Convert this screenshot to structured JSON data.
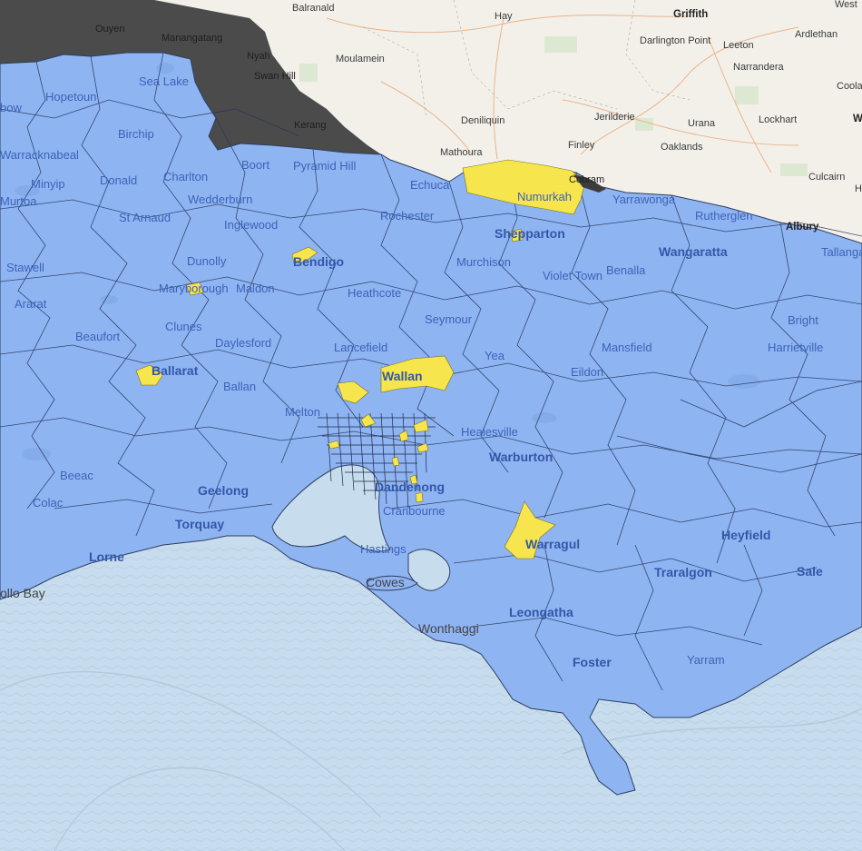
{
  "map": {
    "colors": {
      "water": "#c7dced",
      "land_nsw": "#f3f0ea",
      "region_blue": "#8fb4f2",
      "region_yellow": "#f6e54c",
      "region_dark": "#4b4b4b",
      "boundary": "#1c2a44"
    },
    "labels": [
      {
        "id": "balranald",
        "text": "Balranald",
        "style": "nsw"
      },
      {
        "id": "hay",
        "text": "Hay",
        "style": "nsw"
      },
      {
        "id": "griffith",
        "text": "Griffith",
        "style": "nsw bold"
      },
      {
        "id": "west",
        "text": "West",
        "style": "nsw"
      },
      {
        "id": "ouyen",
        "text": "Ouyen",
        "style": "dark"
      },
      {
        "id": "manangatang",
        "text": "Manangatang",
        "style": "dark"
      },
      {
        "id": "nyah",
        "text": "Nyah",
        "style": "dark"
      },
      {
        "id": "swanhill",
        "text": "Swan Hill",
        "style": "dark"
      },
      {
        "id": "kerang",
        "text": "Kerang",
        "style": "dark"
      },
      {
        "id": "moulamein",
        "text": "Moulamein",
        "style": "nsw"
      },
      {
        "id": "darlington",
        "text": "Darlington Point",
        "style": "nsw"
      },
      {
        "id": "leeton",
        "text": "Leeton",
        "style": "nsw"
      },
      {
        "id": "ardlethan",
        "text": "Ardlethan",
        "style": "nsw"
      },
      {
        "id": "narrandera",
        "text": "Narrandera",
        "style": "nsw"
      },
      {
        "id": "coola",
        "text": "Coola",
        "style": "nsw"
      },
      {
        "id": "deniliquin",
        "text": "Deniliquin",
        "style": "nsw"
      },
      {
        "id": "jerilderie",
        "text": "Jerilderie",
        "style": "nsw"
      },
      {
        "id": "urana",
        "text": "Urana",
        "style": "nsw"
      },
      {
        "id": "lockhart",
        "text": "Lockhart",
        "style": "nsw"
      },
      {
        "id": "w",
        "text": "W",
        "style": "nsw bold"
      },
      {
        "id": "mathoura",
        "text": "Mathoura",
        "style": "nsw"
      },
      {
        "id": "finley",
        "text": "Finley",
        "style": "nsw"
      },
      {
        "id": "oaklands",
        "text": "Oaklands",
        "style": "nsw"
      },
      {
        "id": "culcairn",
        "text": "Culcairn",
        "style": "nsw"
      },
      {
        "id": "he",
        "text": "He",
        "style": "nsw"
      },
      {
        "id": "albury",
        "text": "Albury",
        "style": "nsw bold"
      },
      {
        "id": "cobram",
        "text": "Cobram",
        "style": "dark"
      },
      {
        "id": "hopetoun",
        "text": "Hopetoun",
        "style": "vic"
      },
      {
        "id": "sealake",
        "text": "Sea Lake",
        "style": "vic"
      },
      {
        "id": "rainbow",
        "text": "bow",
        "style": "vic"
      },
      {
        "id": "birchip",
        "text": "Birchip",
        "style": "vic"
      },
      {
        "id": "warracknabeal",
        "text": "Warracknabeal",
        "style": "vic"
      },
      {
        "id": "charlton",
        "text": "Charlton",
        "style": "vic"
      },
      {
        "id": "boort",
        "text": "Boort",
        "style": "vic"
      },
      {
        "id": "pyramidhill",
        "text": "Pyramid Hill",
        "style": "vic"
      },
      {
        "id": "minyip",
        "text": "Minyip",
        "style": "vic"
      },
      {
        "id": "donald",
        "text": "Donald",
        "style": "vic"
      },
      {
        "id": "wedderburn",
        "text": "Wedderburn",
        "style": "vic"
      },
      {
        "id": "echuca",
        "text": "Echuca",
        "style": "vic"
      },
      {
        "id": "numurkah",
        "text": "Numurkah",
        "style": "vic"
      },
      {
        "id": "yarrawonga",
        "text": "Yarrawonga",
        "style": "vic"
      },
      {
        "id": "murtoa",
        "text": "Murtoa",
        "style": "vic"
      },
      {
        "id": "starnaud",
        "text": "St Arnaud",
        "style": "vic"
      },
      {
        "id": "inglewood",
        "text": "Inglewood",
        "style": "vic"
      },
      {
        "id": "rochester",
        "text": "Rochester",
        "style": "vic"
      },
      {
        "id": "rutherglen",
        "text": "Rutherglen",
        "style": "vic"
      },
      {
        "id": "shepparton",
        "text": "Shepparton",
        "style": "vic big"
      },
      {
        "id": "wangaratta",
        "text": "Wangaratta",
        "style": "vic big"
      },
      {
        "id": "tallangatta",
        "text": "Tallanga",
        "style": "vic"
      },
      {
        "id": "stawell",
        "text": "Stawell",
        "style": "vic"
      },
      {
        "id": "dunolly",
        "text": "Dunolly",
        "style": "vic"
      },
      {
        "id": "bendigo",
        "text": "Bendigo",
        "style": "vic big"
      },
      {
        "id": "murchison",
        "text": "Murchison",
        "style": "vic"
      },
      {
        "id": "benalla",
        "text": "Benalla",
        "style": "vic"
      },
      {
        "id": "violettown",
        "text": "Violet Town",
        "style": "vic"
      },
      {
        "id": "ararat",
        "text": "Ararat",
        "style": "vic"
      },
      {
        "id": "maryborough",
        "text": "Maryborough",
        "style": "vic"
      },
      {
        "id": "maldon",
        "text": "Maldon",
        "style": "vic"
      },
      {
        "id": "heathcote",
        "text": "Heathcote",
        "style": "vic"
      },
      {
        "id": "bright",
        "text": "Bright",
        "style": "vic"
      },
      {
        "id": "clunes",
        "text": "Clunes",
        "style": "vic"
      },
      {
        "id": "seymour",
        "text": "Seymour",
        "style": "vic"
      },
      {
        "id": "beaufort",
        "text": "Beaufort",
        "style": "vic"
      },
      {
        "id": "daylesford",
        "text": "Daylesford",
        "style": "vic"
      },
      {
        "id": "lancefield",
        "text": "Lancefield",
        "style": "vic"
      },
      {
        "id": "mansfield",
        "text": "Mansfield",
        "style": "vic"
      },
      {
        "id": "harrietville",
        "text": "Harrietville",
        "style": "vic"
      },
      {
        "id": "yea",
        "text": "Yea",
        "style": "vic"
      },
      {
        "id": "ballarat",
        "text": "Ballarat",
        "style": "vic big"
      },
      {
        "id": "wallan",
        "text": "Wallan",
        "style": "vic big"
      },
      {
        "id": "eildon",
        "text": "Eildon",
        "style": "vic"
      },
      {
        "id": "ballan",
        "text": "Ballan",
        "style": "vic"
      },
      {
        "id": "melton",
        "text": "Melton",
        "style": "vic"
      },
      {
        "id": "healesville",
        "text": "Healesville",
        "style": "vic"
      },
      {
        "id": "warburton",
        "text": "Warburton",
        "style": "vic big"
      },
      {
        "id": "beeac",
        "text": "Beeac",
        "style": "vic"
      },
      {
        "id": "geelong",
        "text": "Geelong",
        "style": "vic big"
      },
      {
        "id": "dandenong",
        "text": "Dandenong",
        "style": "vic big"
      },
      {
        "id": "colac",
        "text": "Colac",
        "style": "vic"
      },
      {
        "id": "cranbourne",
        "text": "Cranbourne",
        "style": "vic"
      },
      {
        "id": "torquay",
        "text": "Torquay",
        "style": "vic big"
      },
      {
        "id": "warragul",
        "text": "Warragul",
        "style": "vic big"
      },
      {
        "id": "heyfield",
        "text": "Heyfield",
        "style": "vic big"
      },
      {
        "id": "hastings",
        "text": "Hastings",
        "style": "vic"
      },
      {
        "id": "lorne",
        "text": "Lorne",
        "style": "vic big"
      },
      {
        "id": "traralgon",
        "text": "Traralgon",
        "style": "vic big"
      },
      {
        "id": "sale",
        "text": "Sale",
        "style": "vic big"
      },
      {
        "id": "cowes",
        "text": "Cowes",
        "style": "coast"
      },
      {
        "id": "apollobay",
        "text": "ollo Bay",
        "style": "coast"
      },
      {
        "id": "leongatha",
        "text": "Leongatha",
        "style": "vic big"
      },
      {
        "id": "wonthaggi",
        "text": "Wonthaggi",
        "style": "coast"
      },
      {
        "id": "yarram",
        "text": "Yarram",
        "style": "vic"
      },
      {
        "id": "foster",
        "text": "Foster",
        "style": "vic big"
      }
    ]
  }
}
